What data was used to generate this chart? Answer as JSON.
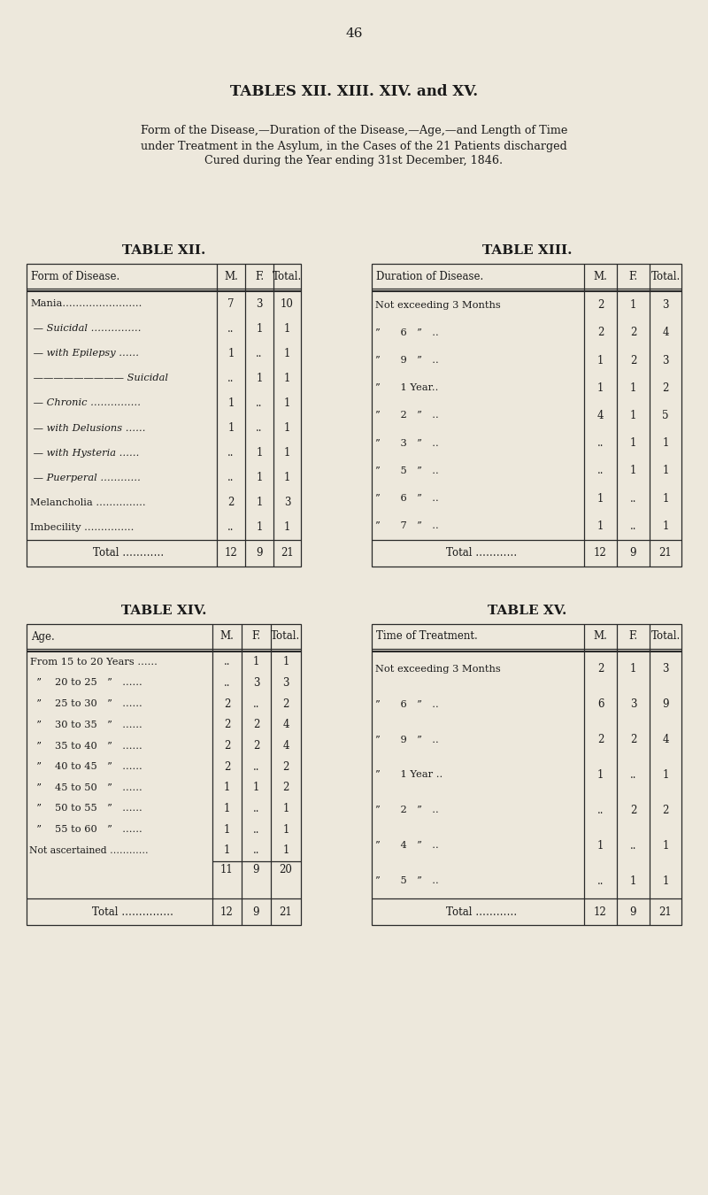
{
  "page_number": "46",
  "main_title": "TABLES XII. XIII. XIV. and XV.",
  "subtitle_lines": [
    "Form of the Disease,—Duration of the Disease,—Age,—and Length of Time",
    "under Treatment in the Asylum, in the Cases of the 21 Patients discharged",
    "Cured during the Year ending 31st December, 1846."
  ],
  "bg_color": "#ede8dc",
  "text_color": "#1a1a1a",
  "table12": {
    "title": "TABLE XII.",
    "header": [
      "Form of Disease.",
      "M.",
      "F.",
      "Total."
    ],
    "rows": [
      [
        "Mania……………………",
        "7",
        "3",
        "10"
      ],
      [
        " — Suicidal ……………",
        "..",
        "1",
        "1"
      ],
      [
        " — with Epilepsy ……",
        "1",
        "..",
        "1"
      ],
      [
        " ————————— Suicidal",
        "..",
        "1",
        "1"
      ],
      [
        " — Chronic ……………",
        "1",
        "..",
        "1"
      ],
      [
        " — with Delusions ……",
        "1",
        "..",
        "1"
      ],
      [
        " — with Hysteria ……",
        "..",
        "1",
        "1"
      ],
      [
        " — Puerperal …………",
        "..",
        "1",
        "1"
      ],
      [
        "Melancholia ……………",
        "2",
        "1",
        "3"
      ],
      [
        "Imbecility ……………",
        "..",
        "1",
        "1"
      ]
    ],
    "total_row": [
      "Total …………",
      "12",
      "9",
      "21"
    ]
  },
  "table13": {
    "title": "TABLE XIII.",
    "header": [
      "Duration of Disease.",
      "M.",
      "F.",
      "Total."
    ],
    "rows": [
      [
        "Not exceeding 3 Months",
        "2",
        "1",
        "3"
      ],
      [
        "”  6 ” ..",
        "2",
        "2",
        "4"
      ],
      [
        "”  9 ” ..",
        "1",
        "2",
        "3"
      ],
      [
        "”  1 Year..",
        "1",
        "1",
        "2"
      ],
      [
        "”  2 ” ..",
        "4",
        "1",
        "5"
      ],
      [
        "”  3 ” ..",
        "..",
        "1",
        "1"
      ],
      [
        "”  5 ” ..",
        "..",
        "1",
        "1"
      ],
      [
        "”  6 ” ..",
        "1",
        "..",
        "1"
      ],
      [
        "”  7 ” ..",
        "1",
        "..",
        "1"
      ]
    ],
    "total_row": [
      "Total …………",
      "12",
      "9",
      "21"
    ]
  },
  "table14": {
    "title": "TABLE XIV.",
    "header": [
      "Age.",
      "M.",
      "F.",
      "Total."
    ],
    "rows": [
      [
        "From 15 to 20 Years ……",
        "..",
        "1",
        "1"
      ],
      [
        "  ”  20 to 25 ” ……",
        "..",
        "3",
        "3"
      ],
      [
        "  ”  25 to 30 ” ……",
        "2",
        "..",
        "2"
      ],
      [
        "  ”  30 to 35 ” ……",
        "2",
        "2",
        "4"
      ],
      [
        "  ”  35 to 40 ” ……",
        "2",
        "2",
        "4"
      ],
      [
        "  ”  40 to 45 ” ……",
        "2",
        "..",
        "2"
      ],
      [
        "  ”  45 to 50 ” ……",
        "1",
        "1",
        "2"
      ],
      [
        "  ”  50 to 55 ” ……",
        "1",
        "..",
        "1"
      ],
      [
        "  ”  55 to 60 ” ……",
        "1",
        "..",
        "1"
      ]
    ],
    "subtotal_row": [
      "",
      "11",
      "9",
      "20"
    ],
    "notasc_row": [
      "Not ascertained …………",
      "1",
      "..",
      "1"
    ],
    "total_row": [
      "Total ……………",
      "12",
      "9",
      "21"
    ]
  },
  "table15": {
    "title": "TABLE XV.",
    "header": [
      "Time of Treatment.",
      "M.",
      "F.",
      "Total."
    ],
    "rows": [
      [
        "Not exceeding 3 Months",
        "2",
        "1",
        "3"
      ],
      [
        "”  6 ” ..",
        "6",
        "3",
        "9"
      ],
      [
        "”  9 ” ..",
        "2",
        "2",
        "4"
      ],
      [
        "”  1 Year ..",
        "1",
        "..",
        "1"
      ],
      [
        "”  2 ” ..",
        "..",
        "2",
        "2"
      ],
      [
        "”  4 ” ..",
        "1",
        "..",
        "1"
      ],
      [
        "”  5 ” ..",
        "..",
        "1",
        "1"
      ]
    ],
    "total_row": [
      "Total …………",
      "12",
      "9",
      "21"
    ]
  }
}
